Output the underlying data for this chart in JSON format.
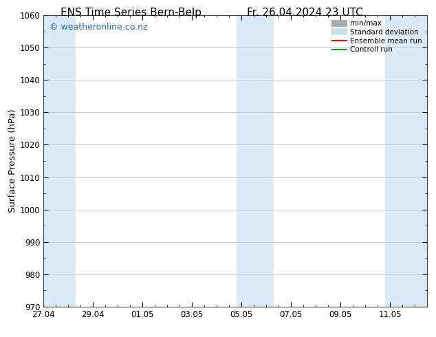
{
  "title_left": "ENS Time Series Bern-Belp",
  "title_right": "Fr. 26.04.2024 23 UTC",
  "ylabel": "Surface Pressure (hPa)",
  "ylim": [
    970,
    1060
  ],
  "yticks": [
    970,
    980,
    990,
    1000,
    1010,
    1020,
    1030,
    1040,
    1050,
    1060
  ],
  "xtick_labels": [
    "27.04",
    "29.04",
    "01.05",
    "03.05",
    "05.05",
    "07.05",
    "09.05",
    "11.05"
  ],
  "xtick_positions": [
    0,
    2,
    4,
    6,
    8,
    10,
    12,
    14
  ],
  "xlim": [
    0,
    15.5
  ],
  "shade_color": "#daeaf7",
  "background_color": "#ffffff",
  "watermark_text": "© weatheronline.co.nz",
  "watermark_color": "#1a6abf",
  "legend_items": [
    {
      "label": "min/max",
      "color": "#aaaaaa",
      "lw": 7
    },
    {
      "label": "Standard deviation",
      "color": "#c8dff0",
      "lw": 7
    },
    {
      "label": "Ensemble mean run",
      "color": "#ff0000",
      "lw": 1.5
    },
    {
      "label": "Controll run",
      "color": "#00aa00",
      "lw": 1.5
    }
  ],
  "title_fontsize": 11,
  "tick_fontsize": 8.5,
  "ylabel_fontsize": 9.5,
  "watermark_fontsize": 9
}
